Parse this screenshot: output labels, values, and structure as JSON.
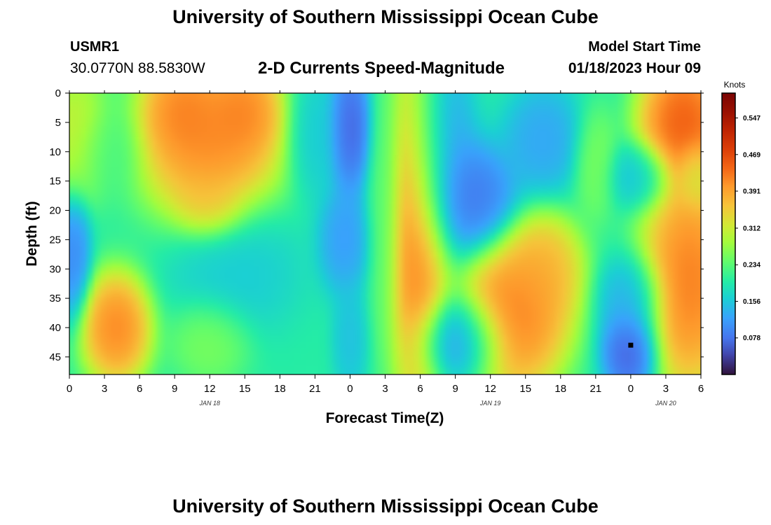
{
  "page": {
    "title": "University of Southern Mississippi Ocean Cube",
    "title_repeat": "University of Southern Mississippi Ocean Cube",
    "station_id": "USMR1",
    "station_coords": "30.0770N  88.5830W",
    "subtitle": "2-D Currents Speed-Magnitude",
    "model_start_label": "Model Start Time",
    "model_start_value": "01/18/2023 Hour 09"
  },
  "chart_data": {
    "type": "heatmap",
    "title": "2-D Currents Speed-Magnitude",
    "xlabel": "Forecast Time(Z)",
    "ylabel": "Depth (ft)",
    "xlim": [
      0,
      54
    ],
    "ylim": [
      48,
      0
    ],
    "x_ticks": [
      "0",
      "3",
      "6",
      "9",
      "12",
      "15",
      "18",
      "21",
      "0",
      "3",
      "6",
      "9",
      "12",
      "15",
      "18",
      "21",
      "0",
      "3",
      "6"
    ],
    "date_labels": [
      {
        "label": "JAN 18",
        "hour": 12
      },
      {
        "label": "JAN 19",
        "hour": 36
      },
      {
        "label": "JAN 20",
        "hour": 51
      }
    ],
    "y_ticks": [
      0,
      5,
      10,
      15,
      20,
      25,
      30,
      35,
      40,
      45
    ],
    "colorbar": {
      "label": "Knots",
      "ticks": [
        "0.547",
        "0.469",
        "0.391",
        "0.312",
        "0.234",
        "0.156",
        "0.078"
      ],
      "tick_values": [
        0.547,
        0.469,
        0.391,
        0.312,
        0.234,
        0.156,
        0.078
      ],
      "min": 0.0,
      "max": 0.6,
      "colormap": "turbo"
    },
    "background_level": 0.2,
    "features": [
      {
        "hour": 0.5,
        "depth": 7,
        "sigma_hour": 1.5,
        "sigma_depth": 6,
        "value": 0.33
      },
      {
        "hour": 0.3,
        "depth": 28,
        "sigma_hour": 0.8,
        "sigma_depth": 6,
        "value": 0.08
      },
      {
        "hour": 3,
        "depth": 10,
        "sigma_hour": 1.5,
        "sigma_depth": 4,
        "value": 0.22
      },
      {
        "hour": 12,
        "depth": 7,
        "sigma_hour": 3.2,
        "sigma_depth": 8,
        "value": 0.46
      },
      {
        "hour": 9.5,
        "depth": 3,
        "sigma_hour": 1.5,
        "sigma_depth": 4,
        "value": 0.44
      },
      {
        "hour": 15,
        "depth": 3,
        "sigma_hour": 1.5,
        "sigma_depth": 4,
        "value": 0.44
      },
      {
        "hour": 12,
        "depth": 19,
        "sigma_hour": 1.5,
        "sigma_depth": 3,
        "value": 0.38
      },
      {
        "hour": 4,
        "depth": 40,
        "sigma_hour": 1.6,
        "sigma_depth": 5,
        "value": 0.46
      },
      {
        "hour": 12,
        "depth": 42,
        "sigma_hour": 1.8,
        "sigma_depth": 4,
        "value": 0.27
      },
      {
        "hour": 14,
        "depth": 30,
        "sigma_hour": 3,
        "sigma_depth": 6,
        "value": 0.15
      },
      {
        "hour": 21,
        "depth": 7,
        "sigma_hour": 1.2,
        "sigma_depth": 6,
        "value": 0.15
      },
      {
        "hour": 24,
        "depth": 6,
        "sigma_hour": 1.0,
        "sigma_depth": 6,
        "value": 0.04
      },
      {
        "hour": 23.5,
        "depth": 25,
        "sigma_hour": 1.2,
        "sigma_depth": 5,
        "value": 0.1
      },
      {
        "hour": 24,
        "depth": 42,
        "sigma_hour": 0.8,
        "sigma_depth": 5,
        "value": 0.14
      },
      {
        "hour": 27,
        "depth": 18,
        "sigma_hour": 0.8,
        "sigma_depth": 14,
        "value": 0.22
      },
      {
        "hour": 29.7,
        "depth": 22,
        "sigma_hour": 1.5,
        "sigma_depth": 16,
        "value": 0.48
      },
      {
        "hour": 34.5,
        "depth": 18,
        "sigma_hour": 2,
        "sigma_depth": 5,
        "value": 0.06
      },
      {
        "hour": 33.5,
        "depth": 42,
        "sigma_hour": 2,
        "sigma_depth": 4,
        "value": 0.08
      },
      {
        "hour": 31.5,
        "depth": 10,
        "sigma_hour": 1.6,
        "sigma_depth": 10,
        "value": 0.09
      },
      {
        "hour": 38,
        "depth": 38,
        "sigma_hour": 2.5,
        "sigma_depth": 7,
        "value": 0.47
      },
      {
        "hour": 40.5,
        "depth": 30,
        "sigma_hour": 1.8,
        "sigma_depth": 5,
        "value": 0.4
      },
      {
        "hour": 40.5,
        "depth": 8,
        "sigma_hour": 1.8,
        "sigma_depth": 5,
        "value": 0.11
      },
      {
        "hour": 48,
        "depth": 44,
        "sigma_hour": 1.3,
        "sigma_depth": 4,
        "value": 0.03
      },
      {
        "hour": 48,
        "depth": 35,
        "sigma_hour": 1.5,
        "sigma_depth": 4,
        "value": 0.12
      },
      {
        "hour": 48.5,
        "depth": 14,
        "sigma_hour": 1.5,
        "sigma_depth": 3,
        "value": 0.14
      },
      {
        "hour": 52.5,
        "depth": 5,
        "sigma_hour": 2,
        "sigma_depth": 6,
        "value": 0.5
      },
      {
        "hour": 53,
        "depth": 32,
        "sigma_hour": 2.2,
        "sigma_depth": 10,
        "value": 0.47
      },
      {
        "hour": 53.5,
        "depth": 14,
        "sigma_hour": 0.8,
        "sigma_depth": 3,
        "value": 0.3
      },
      {
        "hour": 45,
        "depth": 12,
        "sigma_hour": 1,
        "sigma_depth": 5,
        "value": 0.27
      }
    ],
    "marker": {
      "hour": 48,
      "depth": 43
    }
  },
  "colors": {
    "frame": "#000000",
    "marker": "#000000"
  }
}
